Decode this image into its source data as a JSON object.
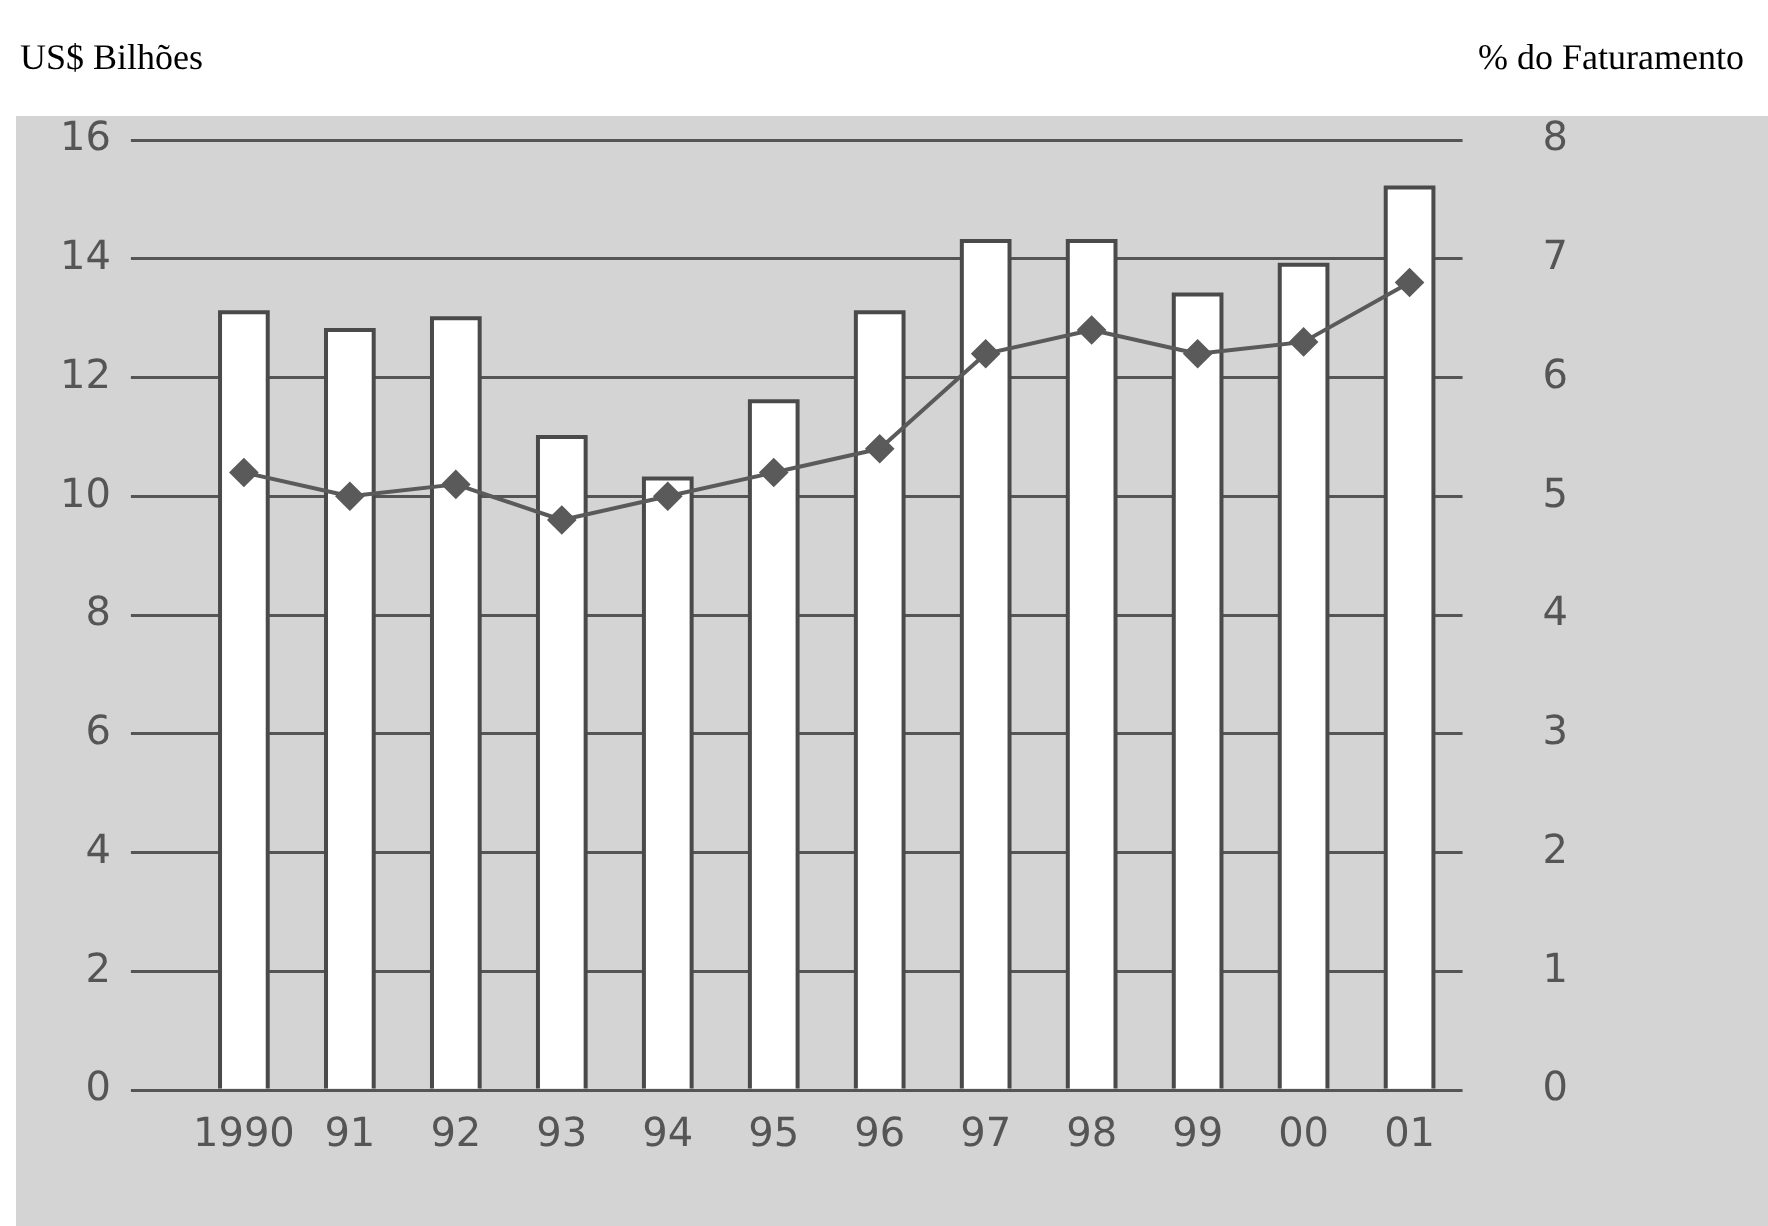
{
  "chart_data": {
    "type": "bar",
    "ylabel": "US$ Bilhões",
    "y2label": "% do Faturamento",
    "categories": [
      "1990",
      "91",
      "92",
      "93",
      "94",
      "95",
      "96",
      "97",
      "98",
      "99",
      "00",
      "01"
    ],
    "series": [
      {
        "color": "#ffffff",
        "values": [
          13.1,
          12.8,
          13.0,
          11.0,
          10.3,
          11.6,
          13.1,
          14.3,
          14.3,
          13.4,
          13.9,
          15.2
        ]
      },
      {
        "type": "line",
        "axis": "y2",
        "color": "#5a5a5a",
        "values": [
          5.2,
          5.0,
          5.1,
          4.8,
          5.0,
          5.2,
          5.4,
          6.2,
          6.4,
          6.2,
          6.3,
          6.8
        ]
      }
    ],
    "ylim": [
      0,
      16
    ],
    "yticks": [
      0,
      2,
      4,
      6,
      8,
      10,
      12,
      14,
      16
    ],
    "y2lim": [
      0,
      8
    ],
    "y2ticks": [
      0,
      1,
      2,
      3,
      4,
      5,
      6,
      7,
      8
    ],
    "grid": "y",
    "marker": "diamond"
  }
}
